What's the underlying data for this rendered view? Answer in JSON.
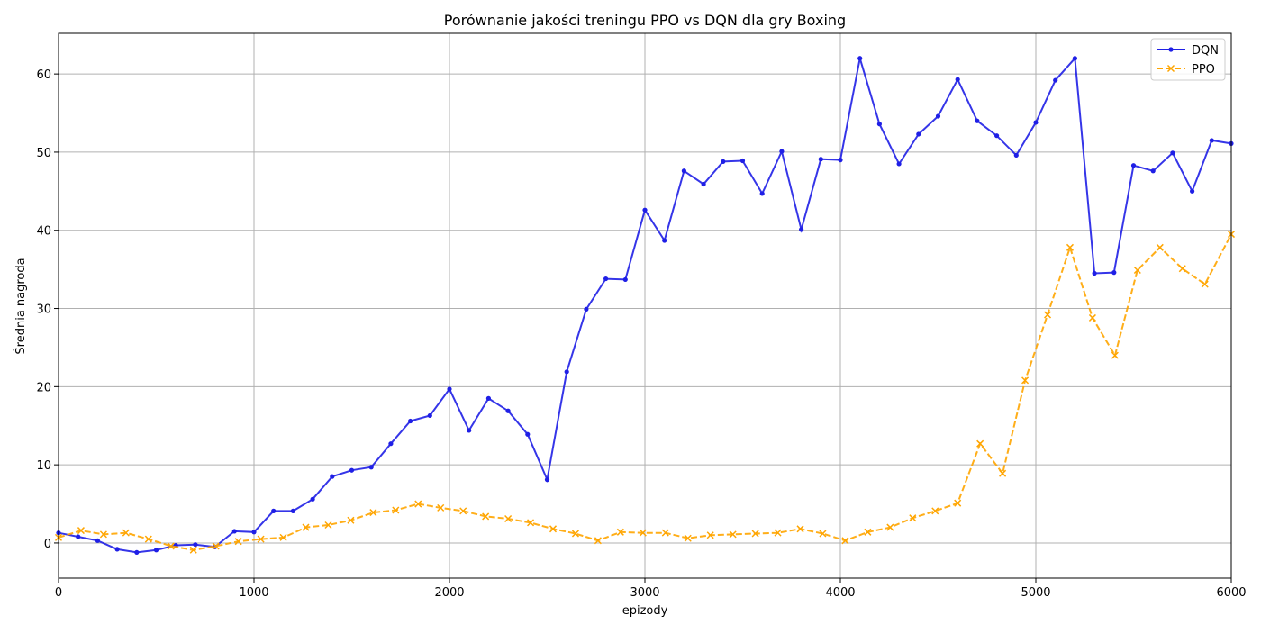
{
  "chart_data": {
    "type": "line",
    "title": "Porównanie jakości treningu PPO vs DQN dla gry Boxing",
    "xlabel": "epizody",
    "ylabel": "Średnia nagroda",
    "xlim": [
      0,
      6000
    ],
    "ylim": [
      -4.5,
      65.2
    ],
    "xticks": [
      0,
      1000,
      2000,
      3000,
      4000,
      5000,
      6000
    ],
    "yticks": [
      0,
      10,
      20,
      30,
      40,
      50,
      60
    ],
    "grid": true,
    "legend_position": "top-right",
    "series": [
      {
        "name": "DQN",
        "color": "#1f1fe6",
        "marker": "dot",
        "linestyle": "solid",
        "x": [
          0,
          100,
          200,
          300,
          400,
          500,
          600,
          700,
          800,
          900,
          1000,
          1100,
          1200,
          1300,
          1400,
          1500,
          1600,
          1700,
          1800,
          1900,
          2000,
          2100,
          2200,
          2300,
          2400,
          2500,
          2600,
          2700,
          2800,
          2900,
          3000,
          3100,
          3200,
          3300,
          3400,
          3500,
          3600,
          3700,
          3800,
          3900,
          4000,
          4100,
          4200,
          4300,
          4400,
          4500,
          4600,
          4700,
          4800,
          4900,
          5000,
          5100,
          5200,
          5300,
          5400,
          5500,
          5600,
          5700,
          5800,
          5900,
          6000
        ],
        "y": [
          1.3,
          0.8,
          0.3,
          -0.8,
          -1.2,
          -0.9,
          -0.3,
          -0.2,
          -0.5,
          1.5,
          1.4,
          4.1,
          4.1,
          5.6,
          8.5,
          9.3,
          9.7,
          12.7,
          15.6,
          16.3,
          19.7,
          14.4,
          18.5,
          16.9,
          13.9,
          8.1,
          21.9,
          29.9,
          33.8,
          33.7,
          42.6,
          38.7,
          47.6,
          45.9,
          48.8,
          48.9,
          44.7,
          50.1,
          40.1,
          49.1,
          49.0,
          62.0,
          53.6,
          48.5,
          52.3,
          54.6,
          59.3,
          54.0,
          52.1,
          49.6,
          53.8,
          59.2,
          62.0,
          34.5,
          34.6,
          48.3,
          47.6,
          49.9,
          45.0,
          51.5,
          51.1
        ]
      },
      {
        "name": "PPO",
        "color": "#ffa500",
        "marker": "x",
        "linestyle": "dashed",
        "x": [
          0,
          115,
          230,
          345,
          460,
          575,
          690,
          805,
          920,
          1035,
          1150,
          1265,
          1380,
          1495,
          1610,
          1725,
          1840,
          1955,
          2070,
          2185,
          2300,
          2415,
          2530,
          2645,
          2760,
          2875,
          2990,
          3105,
          3220,
          3335,
          3450,
          3565,
          3680,
          3795,
          3910,
          4025,
          4140,
          4255,
          4370,
          4485,
          4600,
          4715,
          4830,
          4945,
          5060,
          5175,
          5290,
          5405,
          5520,
          5635,
          5750,
          5865,
          6000
        ],
        "y": [
          0.7,
          1.6,
          1.1,
          1.3,
          0.5,
          -0.4,
          -0.9,
          -0.4,
          0.2,
          0.5,
          0.7,
          2.0,
          2.3,
          2.9,
          3.9,
          4.2,
          5.0,
          4.5,
          4.1,
          3.4,
          3.1,
          2.6,
          1.8,
          1.2,
          0.3,
          1.4,
          1.3,
          1.3,
          0.6,
          1.0,
          1.1,
          1.2,
          1.3,
          1.8,
          1.2,
          0.3,
          1.4,
          2.0,
          3.2,
          4.1,
          5.1,
          12.7,
          8.9,
          20.8,
          29.2,
          37.8,
          28.8,
          24.0,
          34.9,
          37.8,
          35.1,
          33.1,
          39.5
        ]
      }
    ]
  }
}
